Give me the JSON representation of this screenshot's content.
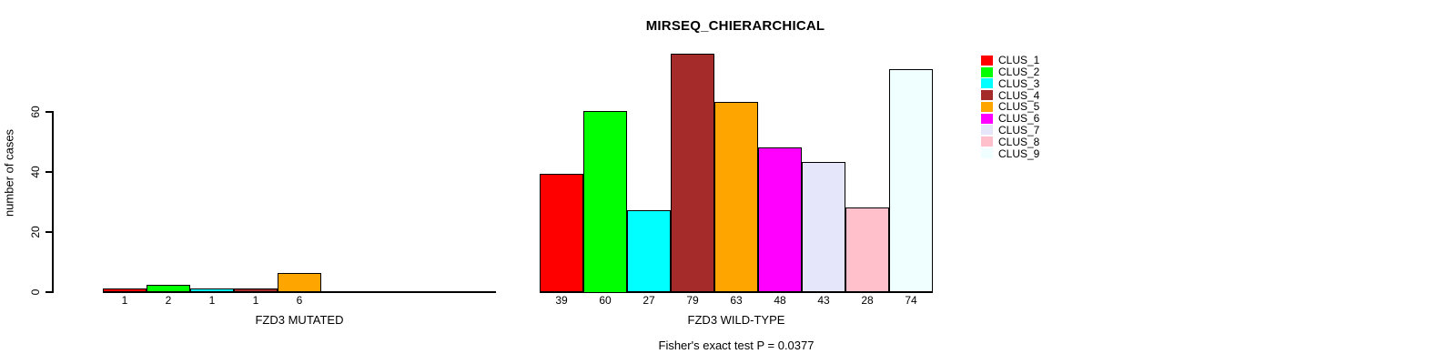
{
  "page": {
    "background": "#FFFFFF"
  },
  "chart_data": {
    "type": "bar",
    "title": "MIRSEQ_CHIERARCHICAL",
    "ylabel": "number of cases",
    "ylim": [
      0,
      80
    ],
    "yticks": [
      0,
      20,
      40,
      60
    ],
    "grid": false,
    "legend_position": "right",
    "legend": [
      {
        "label": "CLUS_1",
        "color": "#FF0000"
      },
      {
        "label": "CLUS_2",
        "color": "#00FF00"
      },
      {
        "label": "CLUS_3",
        "color": "#00FFFF"
      },
      {
        "label": "CLUS_4",
        "color": "#A52A2A"
      },
      {
        "label": "CLUS_5",
        "color": "#FFA500"
      },
      {
        "label": "CLUS_6",
        "color": "#FF00FF"
      },
      {
        "label": "CLUS_7",
        "color": "#E6E6FA"
      },
      {
        "label": "CLUS_8",
        "color": "#FFC0CB"
      },
      {
        "label": "CLUS_9",
        "color": "#F0FFFF"
      }
    ],
    "groups": [
      {
        "xlabel": "FZD3 MUTATED",
        "categories": [
          "CLUS_1",
          "CLUS_2",
          "CLUS_3",
          "CLUS_4",
          "CLUS_5",
          "CLUS_6",
          "CLUS_7",
          "CLUS_8",
          "CLUS_9"
        ],
        "values": [
          1,
          2,
          1,
          1,
          6,
          0,
          0,
          0,
          0
        ],
        "bar_labels": [
          "1",
          "2",
          "1",
          "1",
          "6",
          "",
          "",
          "",
          ""
        ]
      },
      {
        "xlabel": "FZD3 WILD-TYPE",
        "categories": [
          "CLUS_1",
          "CLUS_2",
          "CLUS_3",
          "CLUS_4",
          "CLUS_5",
          "CLUS_6",
          "CLUS_7",
          "CLUS_8",
          "CLUS_9"
        ],
        "values": [
          39,
          60,
          27,
          79,
          63,
          48,
          43,
          28,
          74
        ],
        "bar_labels": [
          "39",
          "60",
          "27",
          "79",
          "63",
          "48",
          "43",
          "28",
          "74"
        ]
      }
    ],
    "annotation": "Fisher's exact test P = 0.0377"
  }
}
